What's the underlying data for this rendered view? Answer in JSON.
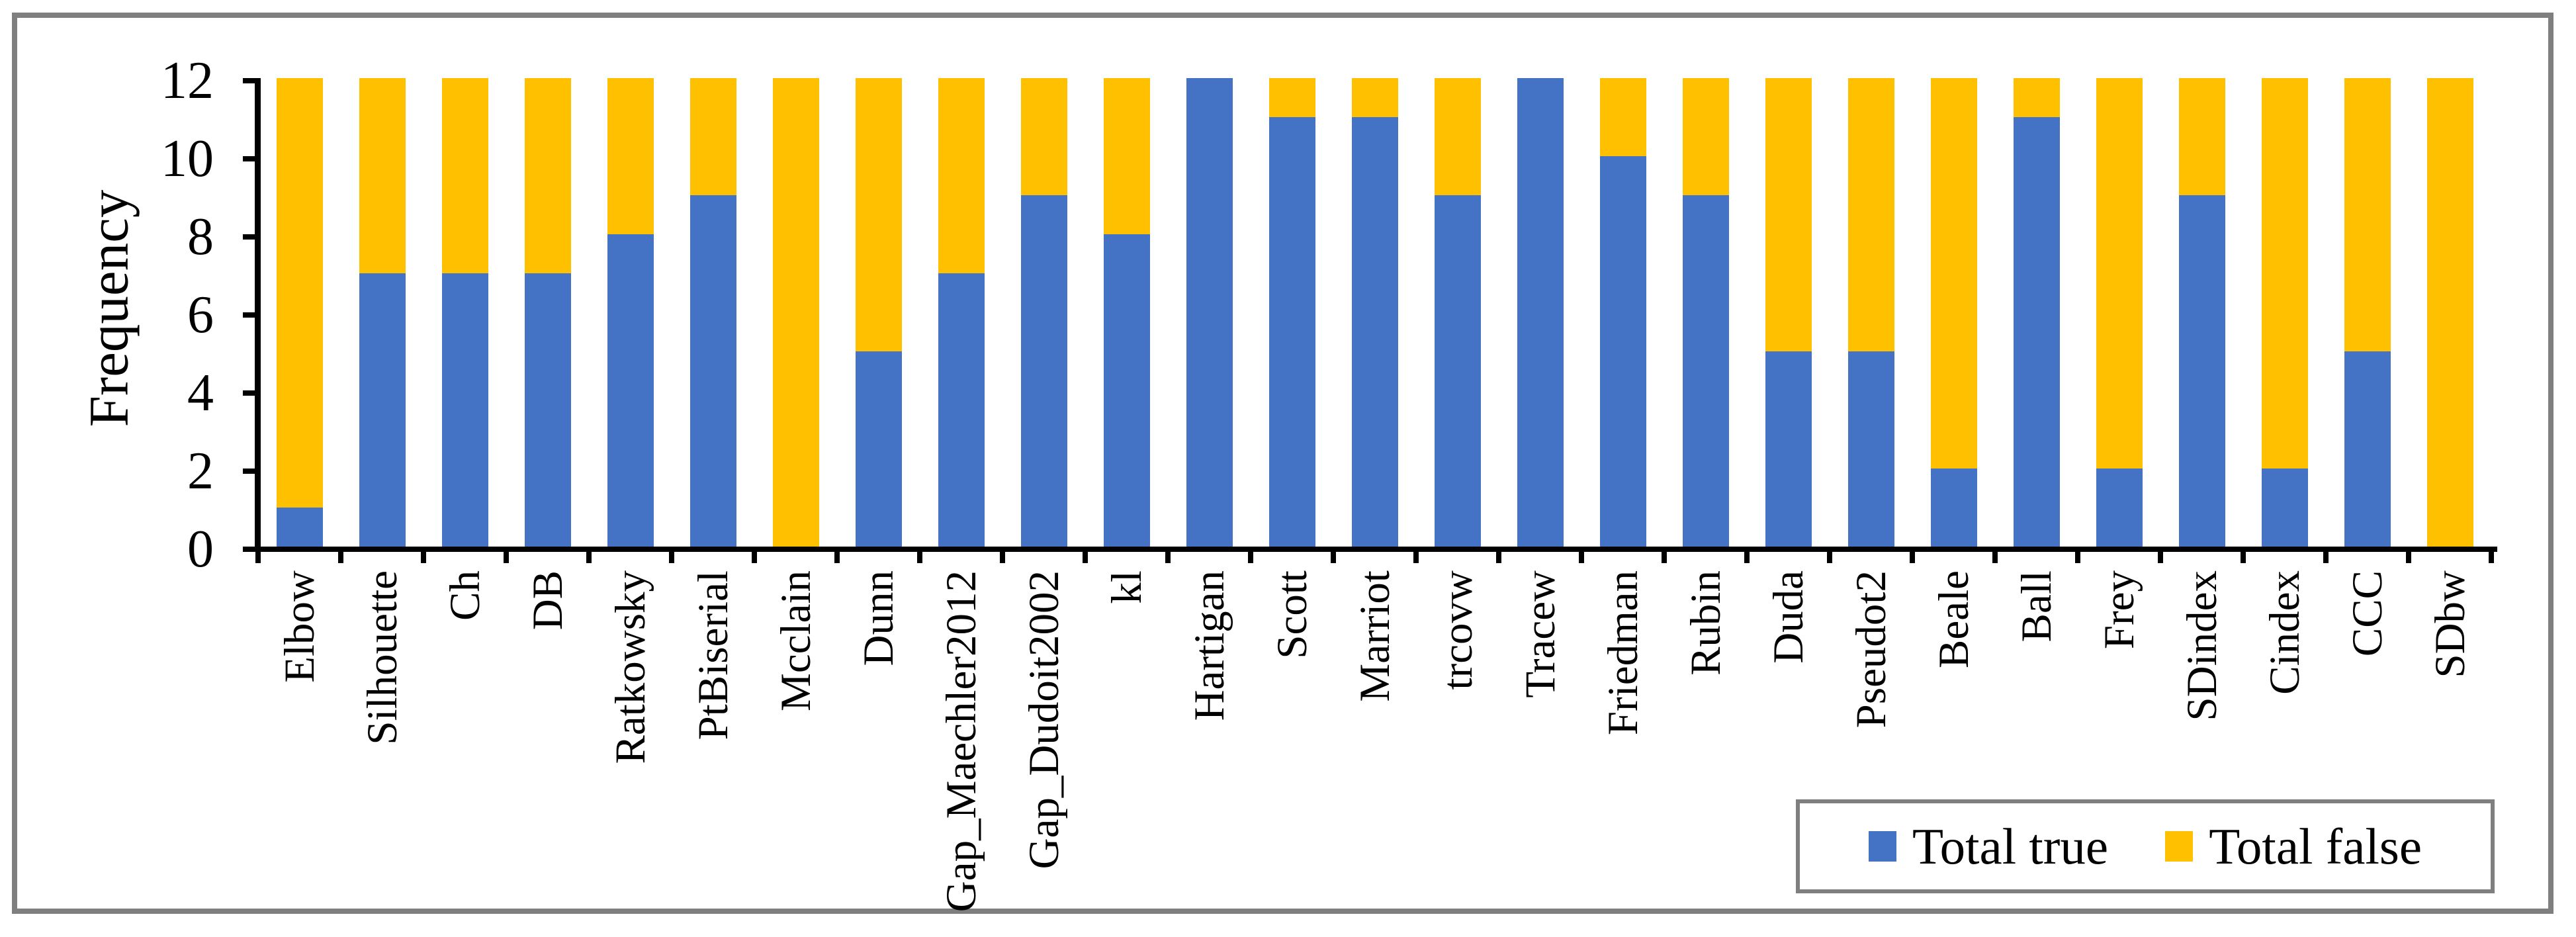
{
  "figure": {
    "background": "#FFFFFF",
    "frame_border_color": "#7F7F7F",
    "axis_color": "#000000"
  },
  "chart_data": {
    "type": "bar",
    "stacked": true,
    "title": "",
    "xlabel": "",
    "ylabel": "Frequency",
    "ylim": [
      0,
      12
    ],
    "yticks": [
      0,
      2,
      4,
      6,
      8,
      10,
      12
    ],
    "grid": false,
    "legend_position": "bottom-right",
    "categories": [
      "Elbow",
      "Silhouette",
      "Ch",
      "DB",
      "Ratkowsky",
      "PtBiserial",
      "Mcclain",
      "Dunn",
      "Gap_Maechler2012",
      "Gap_Dudoit2002",
      "kl",
      "Hartigan",
      "Scott",
      "Marriot",
      "trcovw",
      "Tracew",
      "Friedman",
      "Rubin",
      "Duda",
      "Pseudot2",
      "Beale",
      "Ball",
      "Frey",
      "SDindex",
      "Cindex",
      "CCC",
      "SDbw"
    ],
    "series": [
      {
        "name": "Total true",
        "color": "#4472C4",
        "values": [
          1,
          7,
          7,
          7,
          8,
          9,
          0,
          5,
          7,
          9,
          8,
          12,
          11,
          11,
          9,
          12,
          10,
          9,
          5,
          5,
          2,
          11,
          2,
          9,
          2,
          5,
          0
        ]
      },
      {
        "name": "Total false",
        "color": "#FFC000",
        "values": [
          11,
          5,
          5,
          5,
          4,
          3,
          12,
          7,
          5,
          3,
          4,
          0,
          1,
          1,
          3,
          0,
          2,
          3,
          7,
          7,
          10,
          1,
          10,
          3,
          10,
          7,
          12
        ]
      }
    ]
  },
  "legend": {
    "items": [
      {
        "label": "Total true",
        "color": "#4472C4"
      },
      {
        "label": "Total false",
        "color": "#FFC000"
      }
    ]
  }
}
